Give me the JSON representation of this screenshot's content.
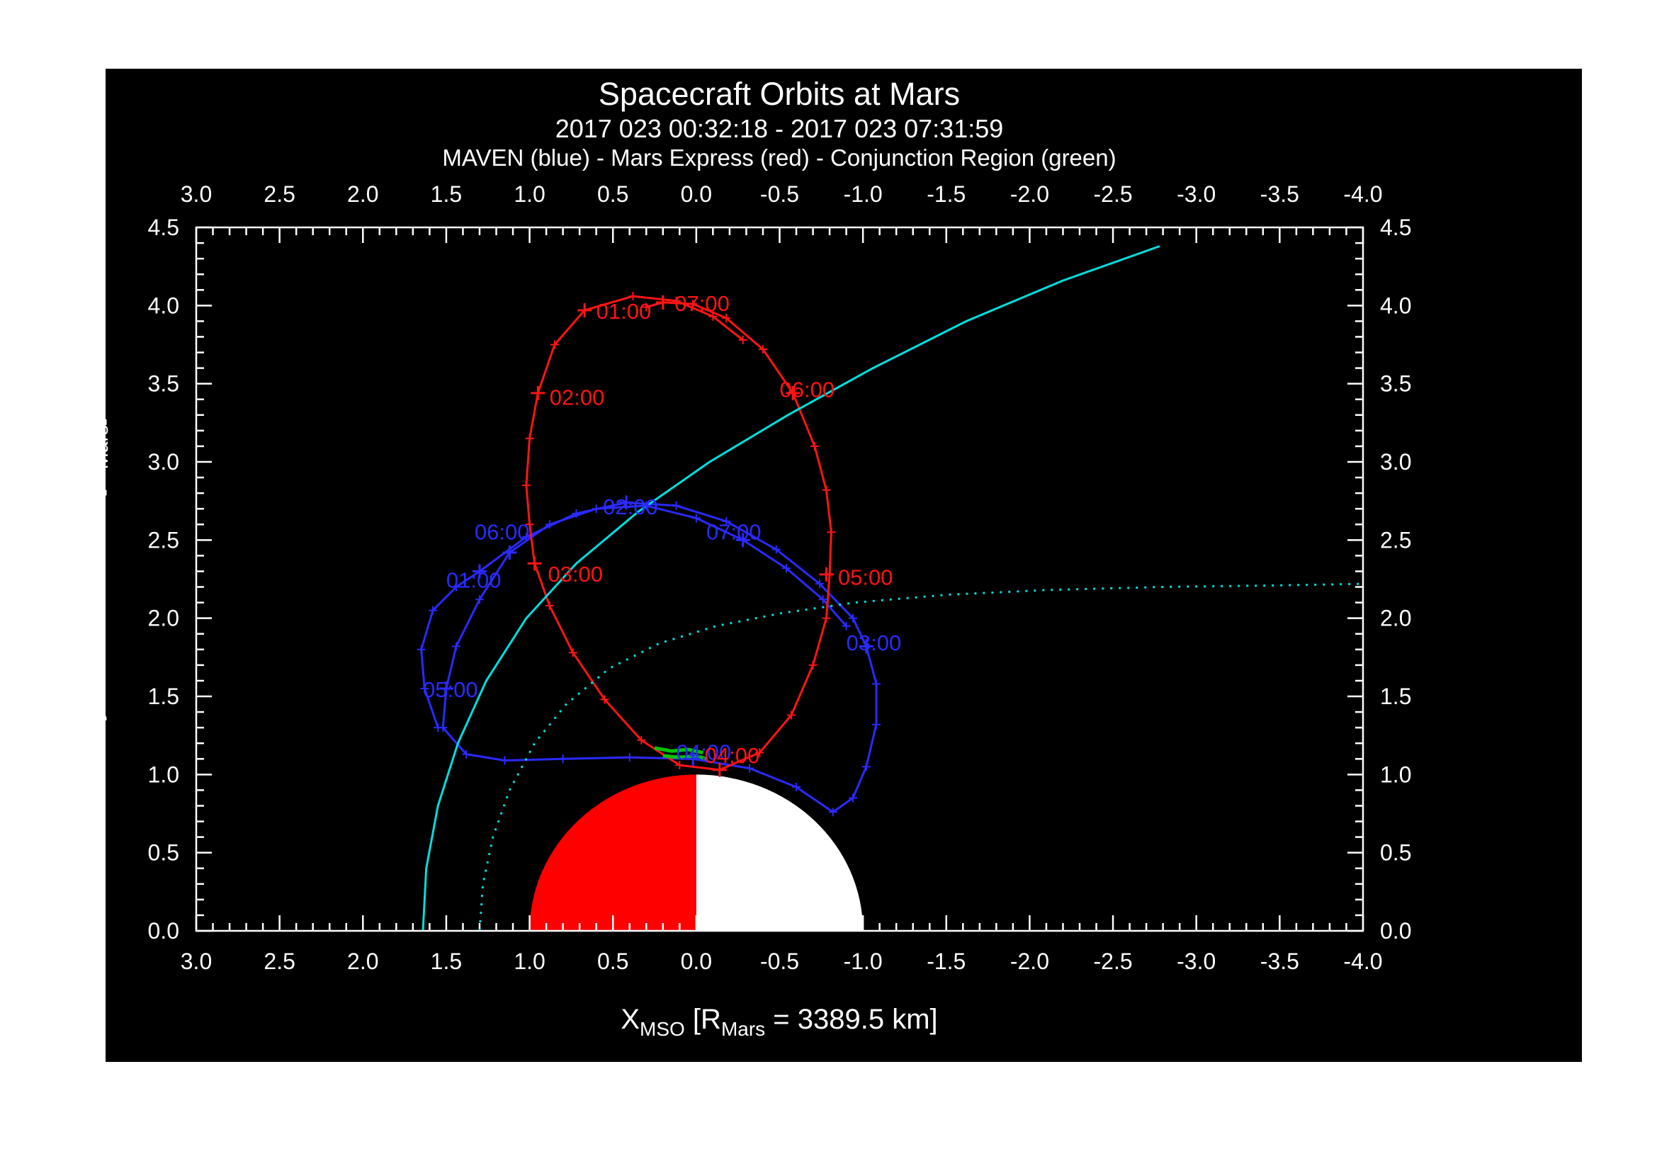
{
  "figure": {
    "page_background": "#ffffff",
    "panel_background": "#000000",
    "frame_color": "#ffffff",
    "text_color": "#ffffff"
  },
  "chart_data": {
    "type": "line",
    "title": "Spacecraft Orbits at Mars",
    "subtitle": "2017 023 00:32:18 - 2017 023 07:31:59",
    "legend_line": "MAVEN (blue) - Mars Express (red) - Conjunction Region (green)",
    "xlabel_parts": {
      "main": "X",
      "sub1": "MSO",
      "mid": " [R",
      "sub2": "Mars",
      "end": " = 3389.5 km]"
    },
    "ylabel_parts": {
      "main": "Cylendrical Radius [R",
      "sub": "Mars",
      "end": "]"
    },
    "x_axis": {
      "range": [
        3.0,
        -4.0
      ],
      "tick_labels": [
        "3.0",
        "2.5",
        "2.0",
        "1.5",
        "1.0",
        "0.5",
        "0.0",
        "-0.5",
        "-1.0",
        "-1.5",
        "-2.0",
        "-2.5",
        "-3.0",
        "-3.5",
        "-4.0"
      ],
      "minor_step": 0.1
    },
    "y_axis": {
      "range": [
        0.0,
        4.5
      ],
      "tick_labels": [
        "0.0",
        "0.5",
        "1.0",
        "1.5",
        "2.0",
        "2.5",
        "3.0",
        "3.5",
        "4.0",
        "4.5"
      ],
      "minor_step": 0.1
    },
    "grid": false,
    "mars_disk": {
      "center": [
        0.0,
        0.0
      ],
      "radius": 1.0,
      "positive_x_color": "#ff0000",
      "negative_x_color": "#ffffff"
    },
    "series": [
      {
        "name": "MAVEN",
        "color": "#2a2aff",
        "line_style": "solid",
        "markers": "plus",
        "segments": [
          [
            [
              1.55,
              1.3
            ],
            [
              1.63,
              1.55
            ],
            [
              1.65,
              1.8
            ],
            [
              1.58,
              2.05
            ],
            [
              1.44,
              2.2
            ],
            [
              1.3,
              2.3
            ],
            [
              1.02,
              2.52
            ],
            [
              0.72,
              2.67
            ],
            [
              0.42,
              2.74
            ],
            [
              0.12,
              2.72
            ],
            [
              -0.18,
              2.62
            ],
            [
              -0.48,
              2.44
            ],
            [
              -0.74,
              2.22
            ],
            [
              -0.94,
              2.0
            ],
            [
              -1.02,
              1.82
            ],
            [
              -1.08,
              1.58
            ],
            [
              -1.08,
              1.32
            ],
            [
              -1.02,
              1.05
            ],
            [
              -0.94,
              0.85
            ],
            [
              -0.82,
              0.76
            ],
            [
              -0.6,
              0.92
            ],
            [
              -0.32,
              1.04
            ],
            [
              0.02,
              1.1
            ],
            [
              0.4,
              1.11
            ],
            [
              0.8,
              1.1
            ],
            [
              1.15,
              1.09
            ],
            [
              1.38,
              1.13
            ],
            [
              1.52,
              1.3
            ],
            [
              1.5,
              1.55
            ],
            [
              1.44,
              1.82
            ],
            [
              1.3,
              2.12
            ],
            [
              1.12,
              2.42
            ],
            [
              0.88,
              2.6
            ],
            [
              0.6,
              2.7
            ],
            [
              0.3,
              2.72
            ],
            [
              0.0,
              2.64
            ],
            [
              -0.28,
              2.5
            ],
            [
              -0.54,
              2.32
            ],
            [
              -0.76,
              2.12
            ],
            [
              -0.9,
              1.95
            ]
          ]
        ],
        "time_labels": [
          {
            "text": "01:00",
            "tick": [
              1.3,
              2.3
            ],
            "label_pos": [
              1.5,
              2.24
            ]
          },
          {
            "text": "02:00",
            "tick": [
              0.42,
              2.74
            ],
            "label_pos": [
              0.56,
              2.71
            ]
          },
          {
            "text": "03:00",
            "tick": [
              -1.02,
              1.82
            ],
            "label_pos": [
              -0.9,
              1.84
            ]
          },
          {
            "text": "04:00",
            "tick": [
              0.02,
              1.1
            ],
            "label_pos": [
              0.12,
              1.14
            ]
          },
          {
            "text": "05:00",
            "tick": [
              1.5,
              1.55
            ],
            "label_pos": [
              1.64,
              1.54
            ]
          },
          {
            "text": "06:00",
            "tick": [
              1.12,
              2.42
            ],
            "label_pos": [
              1.33,
              2.55
            ]
          },
          {
            "text": "07:00",
            "tick": [
              -0.28,
              2.5
            ],
            "label_pos": [
              -0.06,
              2.55
            ]
          }
        ]
      },
      {
        "name": "Mars Express",
        "color": "#ff1414",
        "line_style": "solid",
        "markers": "plus",
        "segments": [
          [
            [
              -0.28,
              3.78
            ],
            [
              -0.1,
              3.93
            ],
            [
              0.12,
              4.03
            ],
            [
              0.38,
              4.06
            ],
            [
              0.67,
              3.97
            ],
            [
              0.85,
              3.75
            ],
            [
              0.95,
              3.44
            ],
            [
              1.0,
              3.15
            ],
            [
              1.02,
              2.85
            ],
            [
              1.0,
              2.6
            ],
            [
              0.97,
              2.35
            ],
            [
              0.88,
              2.08
            ],
            [
              0.74,
              1.78
            ],
            [
              0.55,
              1.48
            ],
            [
              0.33,
              1.22
            ],
            [
              0.1,
              1.06
            ],
            [
              -0.14,
              1.03
            ],
            [
              -0.38,
              1.14
            ],
            [
              -0.57,
              1.38
            ],
            [
              -0.7,
              1.7
            ],
            [
              -0.78,
              2.0
            ],
            [
              -0.8,
              2.28
            ],
            [
              -0.81,
              2.55
            ],
            [
              -0.78,
              2.82
            ],
            [
              -0.71,
              3.1
            ],
            [
              -0.58,
              3.44
            ],
            [
              -0.4,
              3.72
            ],
            [
              -0.18,
              3.92
            ],
            [
              0.02,
              4.01
            ],
            [
              0.2,
              4.02
            ],
            [
              0.3,
              3.99
            ]
          ]
        ],
        "time_labels": [
          {
            "text": "01:00",
            "tick": [
              0.67,
              3.97
            ],
            "label_pos": [
              0.6,
              3.96
            ]
          },
          {
            "text": "02:00",
            "tick": [
              0.95,
              3.44
            ],
            "label_pos": [
              0.88,
              3.41
            ]
          },
          {
            "text": "03:00",
            "tick": [
              0.97,
              2.35
            ],
            "label_pos": [
              0.89,
              2.28
            ]
          },
          {
            "text": "04:00",
            "tick": [
              -0.14,
              1.03
            ],
            "label_pos": [
              -0.05,
              1.12
            ]
          },
          {
            "text": "05:00",
            "tick": [
              -0.78,
              2.28
            ],
            "label_pos": [
              -0.85,
              2.26
            ]
          },
          {
            "text": "06:00",
            "tick": [
              -0.58,
              3.44
            ],
            "label_pos": [
              -0.5,
              3.46
            ]
          },
          {
            "text": "07:00",
            "tick": [
              0.2,
              4.02
            ],
            "label_pos": [
              0.13,
              4.01
            ]
          }
        ]
      },
      {
        "name": "boundary-curve-solid",
        "color": "#00dede",
        "line_style": "solid",
        "markers": "none",
        "segments": [
          [
            [
              1.64,
              0.0
            ],
            [
              1.62,
              0.4
            ],
            [
              1.55,
              0.8
            ],
            [
              1.43,
              1.2
            ],
            [
              1.26,
              1.6
            ],
            [
              1.02,
              2.0
            ],
            [
              0.72,
              2.35
            ],
            [
              0.35,
              2.68
            ],
            [
              -0.08,
              3.0
            ],
            [
              -0.55,
              3.3
            ],
            [
              -1.06,
              3.6
            ],
            [
              -1.62,
              3.9
            ],
            [
              -2.2,
              4.16
            ],
            [
              -2.78,
              4.38
            ]
          ]
        ],
        "time_labels": []
      },
      {
        "name": "boundary-curve-dotted",
        "color": "#00dede",
        "line_style": "dotted",
        "markers": "none",
        "segments": [
          [
            [
              1.3,
              0.0
            ],
            [
              1.28,
              0.3
            ],
            [
              1.22,
              0.6
            ],
            [
              1.12,
              0.9
            ],
            [
              0.97,
              1.2
            ],
            [
              0.78,
              1.45
            ],
            [
              0.52,
              1.68
            ],
            [
              0.22,
              1.84
            ],
            [
              -0.12,
              1.95
            ],
            [
              -0.5,
              2.03
            ],
            [
              -0.95,
              2.1
            ],
            [
              -1.5,
              2.15
            ],
            [
              -2.1,
              2.18
            ],
            [
              -2.8,
              2.2
            ],
            [
              -3.5,
              2.21
            ],
            [
              -4.0,
              2.22
            ]
          ]
        ],
        "time_labels": []
      },
      {
        "name": "conjunction-region",
        "color": "#00c400",
        "line_style": "solid",
        "markers": "none",
        "segments": [
          [
            [
              0.25,
              1.17
            ],
            [
              0.15,
              1.15
            ],
            [
              0.05,
              1.16
            ],
            [
              -0.04,
              1.14
            ]
          ],
          [
            [
              0.2,
              1.12
            ],
            [
              0.1,
              1.11
            ],
            [
              0.0,
              1.12
            ],
            [
              -0.06,
              1.1
            ]
          ]
        ],
        "time_labels": []
      }
    ]
  }
}
